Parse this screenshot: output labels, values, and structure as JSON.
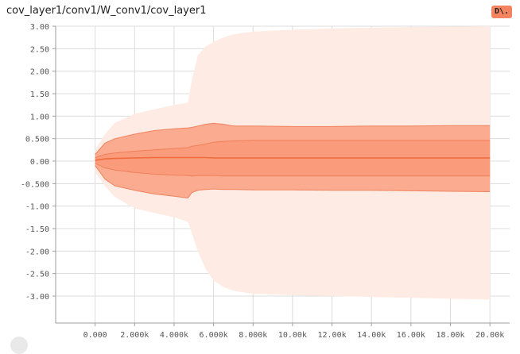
{
  "header": {
    "title": "cov_layer1/conv1/W_conv1/cov_layer1",
    "badge_label": "D\\."
  },
  "colors": {
    "band_outer": "#fdebe4",
    "band_mid": "#fbab8f",
    "band_inner": "#f9906c",
    "line_median": "#f06a3c",
    "line_boundary": "#ee7b55",
    "grid": "#dcdcdc",
    "axis_text": "#555555"
  },
  "chart_data": {
    "type": "area",
    "title": "cov_layer1/conv1/W_conv1/cov_layer1",
    "xlabel": "",
    "ylabel": "",
    "xlim": [
      -2000,
      21000
    ],
    "ylim": [
      -3.6,
      3.0
    ],
    "grid": true,
    "x_ticks": [
      0,
      2000,
      4000,
      6000,
      8000,
      10000,
      12000,
      14000,
      16000,
      18000,
      20000
    ],
    "x_tick_labels": [
      "0.000",
      "2.000k",
      "4.000k",
      "6.000k",
      "8.000k",
      "10.00k",
      "12.00k",
      "14.00k",
      "16.00k",
      "18.00k",
      "20.00k"
    ],
    "y_ticks": [
      3,
      2.5,
      2,
      1.5,
      1,
      0.5,
      0,
      -0.5,
      -1,
      -1.5,
      -2,
      -2.5,
      -3
    ],
    "y_tick_labels": [
      "3.00",
      "2.50",
      "2.00",
      "1.50",
      "1.00",
      "0.500",
      "0.00",
      "-0.500",
      "-1.00",
      "-1.50",
      "-2.00",
      "-2.50",
      "-3.00"
    ],
    "x": [
      0,
      500,
      1000,
      2000,
      3000,
      4000,
      4700,
      4900,
      5200,
      5600,
      6000,
      6500,
      7000,
      8000,
      10000,
      12000,
      14000,
      16000,
      18000,
      20000
    ],
    "series": [
      {
        "values": [
          0.25,
          0.6,
          0.85,
          1.05,
          1.15,
          1.25,
          1.3,
          1.8,
          2.35,
          2.55,
          2.65,
          2.75,
          2.82,
          2.88,
          2.92,
          2.95,
          2.97,
          2.98,
          2.99,
          3.0
        ]
      },
      {
        "values": [
          0.15,
          0.4,
          0.5,
          0.6,
          0.68,
          0.72,
          0.74,
          0.75,
          0.78,
          0.82,
          0.84,
          0.82,
          0.78,
          0.78,
          0.77,
          0.77,
          0.78,
          0.78,
          0.79,
          0.79
        ]
      },
      {
        "values": [
          0.08,
          0.15,
          0.18,
          0.22,
          0.25,
          0.28,
          0.3,
          0.33,
          0.35,
          0.38,
          0.42,
          0.44,
          0.45,
          0.46,
          0.46,
          0.46,
          0.46,
          0.46,
          0.46,
          0.46
        ]
      },
      {
        "values": [
          0.02,
          0.05,
          0.06,
          0.07,
          0.08,
          0.08,
          0.08,
          0.08,
          0.08,
          0.08,
          0.07,
          0.07,
          0.07,
          0.07,
          0.07,
          0.07,
          0.07,
          0.07,
          0.07,
          0.07
        ]
      },
      {
        "values": [
          -0.05,
          -0.15,
          -0.2,
          -0.25,
          -0.29,
          -0.31,
          -0.32,
          -0.33,
          -0.32,
          -0.32,
          -0.32,
          -0.33,
          -0.33,
          -0.33,
          -0.33,
          -0.33,
          -0.33,
          -0.33,
          -0.33,
          -0.33
        ]
      },
      {
        "values": [
          -0.1,
          -0.4,
          -0.55,
          -0.65,
          -0.73,
          -0.78,
          -0.82,
          -0.7,
          -0.65,
          -0.63,
          -0.62,
          -0.63,
          -0.63,
          -0.64,
          -0.64,
          -0.65,
          -0.65,
          -0.66,
          -0.67,
          -0.68
        ]
      },
      {
        "values": [
          -0.25,
          -0.55,
          -0.8,
          -1.05,
          -1.15,
          -1.25,
          -1.35,
          -1.6,
          -2.0,
          -2.4,
          -2.65,
          -2.8,
          -2.88,
          -2.95,
          -2.98,
          -3.0,
          -3.02,
          -3.04,
          -3.06,
          -3.08
        ]
      }
    ]
  }
}
